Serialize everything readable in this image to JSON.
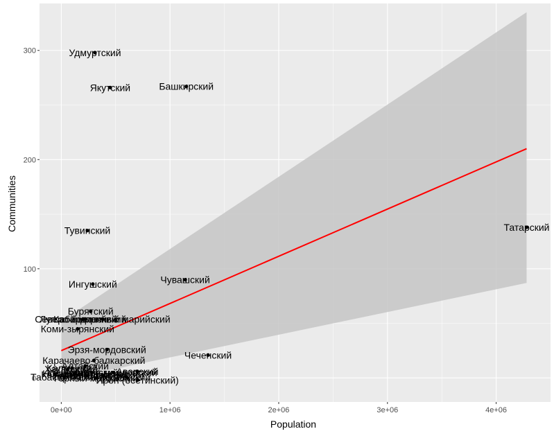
{
  "chart_data": {
    "type": "scatter",
    "xlabel": "Population",
    "ylabel": "Communities",
    "xlim": [
      -200000,
      4500000
    ],
    "ylim": [
      -22,
      343
    ],
    "x_ticks": [
      0,
      1000000,
      2000000,
      3000000,
      4000000
    ],
    "x_tick_labels": [
      "0e+00",
      "1e+06",
      "2e+06",
      "3e+06",
      "4e+06"
    ],
    "y_ticks": [
      0,
      100,
      200,
      300
    ],
    "y_tick_labels": [
      "0",
      "100",
      "200",
      "300"
    ],
    "grid": true,
    "panel_color": "#ebebeb",
    "grid_color": "#ffffff",
    "point_color": "#000000",
    "trend_color": "#ff0000",
    "ribbon_color": "#c6c6c6",
    "points": [
      {
        "x": 310000,
        "y": 298,
        "label": "Удмуртский"
      },
      {
        "x": 450000,
        "y": 266,
        "label": "Якутский"
      },
      {
        "x": 1150000,
        "y": 267,
        "label": "Башкирский"
      },
      {
        "x": 240000,
        "y": 135,
        "label": "Тувинский"
      },
      {
        "x": 4280000,
        "y": 138,
        "label": "Татарский"
      },
      {
        "x": 1140000,
        "y": 90,
        "label": "Чувашский"
      },
      {
        "x": 290000,
        "y": 86,
        "label": "Ингушский"
      },
      {
        "x": 270000,
        "y": 61,
        "label": "Бурятский"
      },
      {
        "x": 200000,
        "y": 54,
        "label": "Луговой марийский"
      },
      {
        "x": 220000,
        "y": 54,
        "label": "Кабардинский"
      },
      {
        "x": 380000,
        "y": 54,
        "label": "Северо-восточный марийский"
      },
      {
        "x": 150000,
        "y": 45,
        "label": "Коми-зырянский"
      },
      {
        "x": 420000,
        "y": 26,
        "label": "Эрзя-мордовский"
      },
      {
        "x": 1350000,
        "y": 21,
        "label": "Чеченский"
      },
      {
        "x": 300000,
        "y": 16,
        "label": "Карачаево-балкарский"
      },
      {
        "x": 220000,
        "y": 11,
        "label": "Алтайский"
      },
      {
        "x": 100000,
        "y": 9,
        "label": "Калмыцкий"
      },
      {
        "x": 60000,
        "y": 8,
        "label": "Хакасский"
      },
      {
        "x": 700000,
        "y": 6,
        "label": "Аварский"
      },
      {
        "x": 280000,
        "y": 5,
        "label": "Адыгейский"
      },
      {
        "x": 480000,
        "y": 5,
        "label": "Мокша-мордовский"
      },
      {
        "x": 120000,
        "y": 4,
        "label": "Осетинский"
      },
      {
        "x": 40000,
        "y": 4,
        "label": "Ногайский"
      },
      {
        "x": 160000,
        "y": 3,
        "label": "Коми-пермяцкий"
      },
      {
        "x": 520000,
        "y": 3,
        "label": "Даргинский"
      },
      {
        "x": 380000,
        "y": 2,
        "label": "Лезгинский"
      },
      {
        "x": 90000,
        "y": 2,
        "label": "Лакский"
      },
      {
        "x": 600000,
        "y": 1,
        "label": "Кумыкский"
      },
      {
        "x": 30000,
        "y": 1,
        "label": "Табасаранский"
      },
      {
        "x": 320000,
        "y": 0,
        "label": "Горный марийский"
      },
      {
        "x": 700000,
        "y": -2,
        "label": "Ирон (осетинский)"
      }
    ],
    "trend": {
      "x": [
        0,
        4280000
      ],
      "y": [
        25,
        210
      ]
    },
    "ribbon": {
      "x": [
        0,
        4280000
      ],
      "upper": [
        52,
        335
      ],
      "lower": [
        -2,
        87
      ]
    }
  }
}
